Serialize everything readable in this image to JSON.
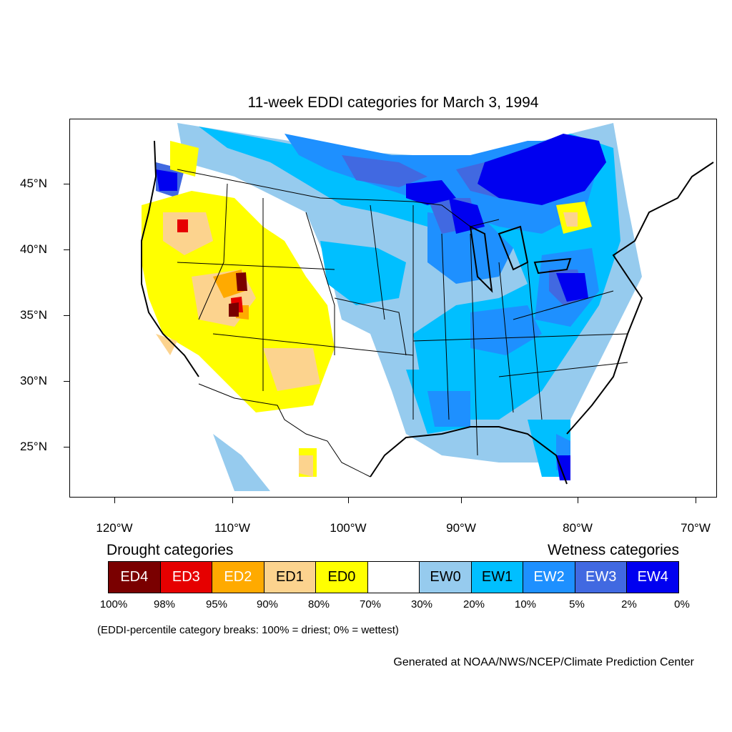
{
  "title": "11-week EDDI categories for March 3, 1994",
  "map": {
    "projection": "lambert-conformal",
    "lat_labels": [
      "45°N",
      "40°N",
      "35°N",
      "30°N",
      "25°N"
    ],
    "lon_labels": [
      "120°W",
      "110°W",
      "100°W",
      "90°W",
      "80°W",
      "70°W"
    ]
  },
  "legend": {
    "drought_title": "Drought categories",
    "wetness_title": "Wetness categories",
    "categories": [
      {
        "label": "ED4",
        "color": "#7a0000",
        "text_color": "#ffffff"
      },
      {
        "label": "ED3",
        "color": "#e60000",
        "text_color": "#ffffff"
      },
      {
        "label": "ED2",
        "color": "#ffaa00",
        "text_color": "#ffffff"
      },
      {
        "label": "ED1",
        "color": "#fcd38e",
        "text_color": "#000000"
      },
      {
        "label": "ED0",
        "color": "#ffff00",
        "text_color": "#000000"
      },
      {
        "label": "",
        "color": "#ffffff",
        "text_color": "#000000"
      },
      {
        "label": "EW0",
        "color": "#96cbee",
        "text_color": "#000000"
      },
      {
        "label": "EW1",
        "color": "#00bfff",
        "text_color": "#000000"
      },
      {
        "label": "EW2",
        "color": "#1e90ff",
        "text_color": "#ffffff"
      },
      {
        "label": "EW3",
        "color": "#4169e1",
        "text_color": "#ffffff"
      },
      {
        "label": "EW4",
        "color": "#0000f0",
        "text_color": "#ffffff"
      }
    ],
    "percent_breaks": [
      "100%",
      "98%",
      "95%",
      "90%",
      "80%",
      "70%",
      "30%",
      "20%",
      "10%",
      "5%",
      "2%",
      "0%"
    ]
  },
  "footnote": "(EDDI-percentile category breaks: 100% = driest; 0% = wettest)",
  "credit": "Generated at NOAA/NWS/NCEP/Climate Prediction Center"
}
